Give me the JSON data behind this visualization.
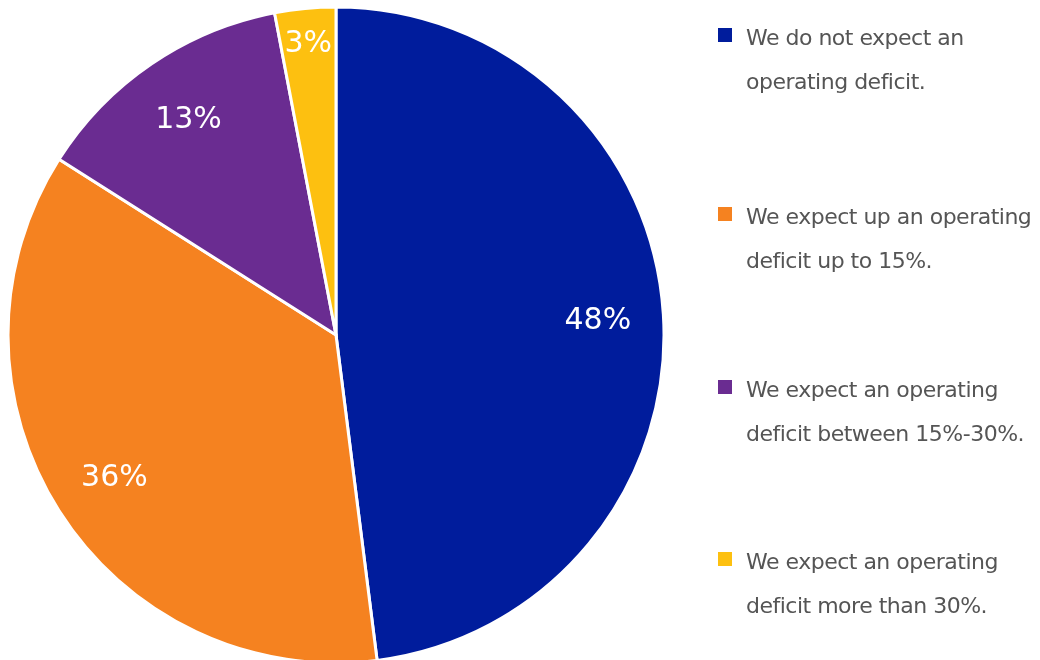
{
  "chart_data": {
    "type": "pie",
    "categories": [
      "We do not expect an operating deficit.",
      "We expect up an operating deficit up to 15%.",
      "We expect an operating deficit between 15%-30%.",
      "We expect an operating deficit more than 30%."
    ],
    "values": [
      48,
      36,
      13,
      3
    ],
    "colors": [
      "#001c9c",
      "#f58220",
      "#6a2c91",
      "#fdc010"
    ],
    "value_labels": [
      "48%",
      "36%",
      "13%",
      "3%"
    ],
    "legend": "right"
  }
}
